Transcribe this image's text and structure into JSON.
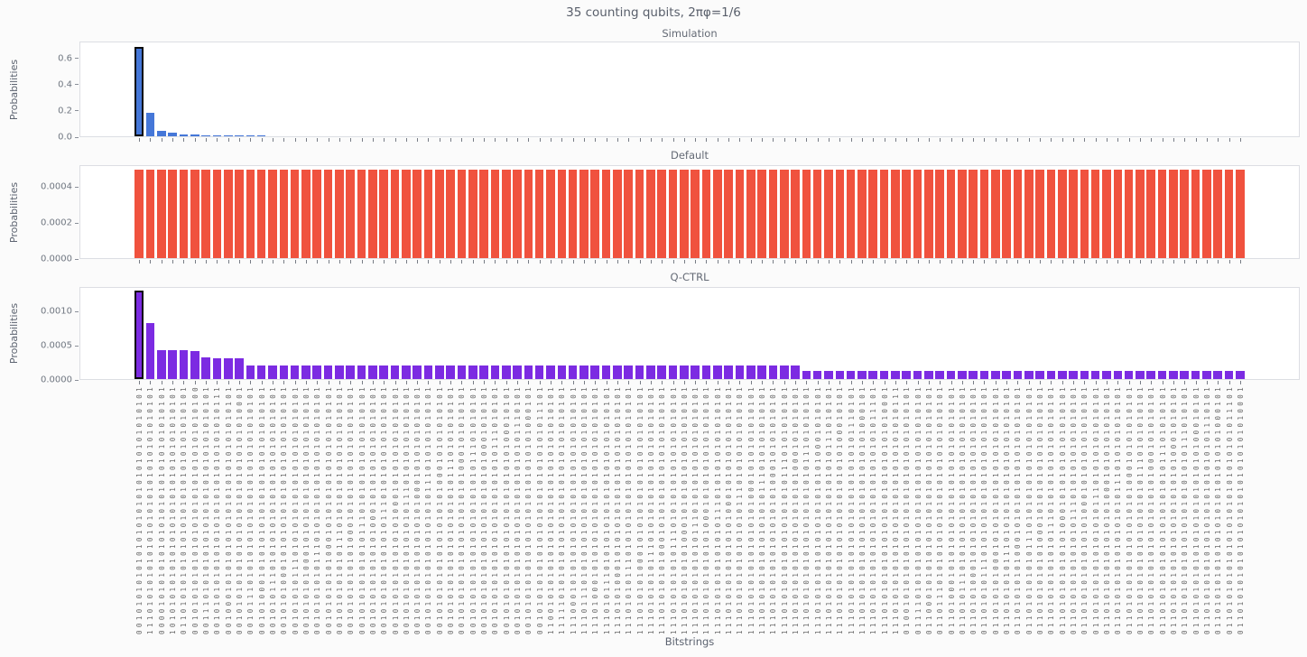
{
  "figure": {
    "suptitle": "35 counting qubits, 2πφ=1/6",
    "xlabel": "Bitstrings",
    "ylabel": "Probabilities"
  },
  "chart_data": [
    {
      "type": "bar",
      "title": "Simulation",
      "color": "#4577d8",
      "highlight_index": 0,
      "highlight_edge": "#0a0a0a",
      "yticks": [
        "0.0",
        "0.2",
        "0.4",
        "0.6"
      ],
      "ytick_values": [
        0.0,
        0.2,
        0.4,
        0.6
      ],
      "ylim": [
        0,
        0.73
      ],
      "values": [
        0.685,
        0.176,
        0.042,
        0.028,
        0.016,
        0.014,
        0.009,
        0.008,
        0.008,
        0.007,
        0.007,
        0.007,
        0,
        0,
        0,
        0,
        0,
        0,
        0,
        0,
        0,
        0,
        0,
        0,
        0,
        0,
        0,
        0,
        0,
        0,
        0,
        0,
        0,
        0,
        0,
        0,
        0,
        0,
        0,
        0,
        0,
        0,
        0,
        0,
        0,
        0,
        0,
        0,
        0,
        0,
        0,
        0,
        0,
        0,
        0,
        0,
        0,
        0,
        0,
        0,
        0,
        0,
        0,
        0,
        0,
        0,
        0,
        0,
        0,
        0,
        0,
        0,
        0,
        0,
        0,
        0,
        0,
        0,
        0,
        0,
        0,
        0,
        0,
        0,
        0,
        0,
        0,
        0,
        0,
        0,
        0,
        0,
        0,
        0,
        0,
        0,
        0,
        0,
        0,
        0
      ]
    },
    {
      "type": "bar",
      "title": "Default",
      "color": "#f0523e",
      "highlight_index": -1,
      "highlight_edge": "#0a0a0a",
      "yticks": [
        "0.0000",
        "0.0002",
        "0.0004"
      ],
      "ytick_values": [
        0.0,
        0.0002,
        0.0004
      ],
      "ylim": [
        0,
        0.00052
      ],
      "values": [
        0.00049,
        0.00049,
        0.00049,
        0.00049,
        0.00049,
        0.00049,
        0.00049,
        0.00049,
        0.00049,
        0.00049,
        0.00049,
        0.00049,
        0.00049,
        0.00049,
        0.00049,
        0.00049,
        0.00049,
        0.00049,
        0.00049,
        0.00049,
        0.00049,
        0.00049,
        0.00049,
        0.00049,
        0.00049,
        0.00049,
        0.00049,
        0.00049,
        0.00049,
        0.00049,
        0.00049,
        0.00049,
        0.00049,
        0.00049,
        0.00049,
        0.00049,
        0.00049,
        0.00049,
        0.00049,
        0.00049,
        0.00049,
        0.00049,
        0.00049,
        0.00049,
        0.00049,
        0.00049,
        0.00049,
        0.00049,
        0.00049,
        0.00049,
        0.00049,
        0.00049,
        0.00049,
        0.00049,
        0.00049,
        0.00049,
        0.00049,
        0.00049,
        0.00049,
        0.00049,
        0.00049,
        0.00049,
        0.00049,
        0.00049,
        0.00049,
        0.00049,
        0.00049,
        0.00049,
        0.00049,
        0.00049,
        0.00049,
        0.00049,
        0.00049,
        0.00049,
        0.00049,
        0.00049,
        0.00049,
        0.00049,
        0.00049,
        0.00049,
        0.00049,
        0.00049,
        0.00049,
        0.00049,
        0.00049,
        0.00049,
        0.00049,
        0.00049,
        0.00049,
        0.00049,
        0.00049,
        0.00049,
        0.00049,
        0.00049,
        0.00049,
        0.00049,
        0.00049,
        0.00049,
        0.00049,
        0.00049
      ]
    },
    {
      "type": "bar",
      "title": "Q-CTRL",
      "color": "#7c2be2",
      "highlight_index": 0,
      "highlight_edge": "#0a0a0a",
      "yticks": [
        "0.0000",
        "0.0005",
        "0.0010"
      ],
      "ytick_values": [
        0.0,
        0.0005,
        0.001
      ],
      "ylim": [
        0,
        0.00136
      ],
      "values": [
        0.0013,
        0.00082,
        0.00042,
        0.00042,
        0.00042,
        0.00041,
        0.00032,
        0.00031,
        0.00031,
        0.00031,
        0.0002,
        0.0002,
        0.0002,
        0.0002,
        0.0002,
        0.0002,
        0.0002,
        0.0002,
        0.0002,
        0.0002,
        0.0002,
        0.0002,
        0.0002,
        0.0002,
        0.0002,
        0.0002,
        0.0002,
        0.0002,
        0.0002,
        0.0002,
        0.0002,
        0.0002,
        0.0002,
        0.0002,
        0.0002,
        0.0002,
        0.0002,
        0.0002,
        0.0002,
        0.0002,
        0.0002,
        0.0002,
        0.0002,
        0.0002,
        0.0002,
        0.0002,
        0.0002,
        0.0002,
        0.0002,
        0.0002,
        0.0002,
        0.0002,
        0.0002,
        0.0002,
        0.0002,
        0.0002,
        0.0002,
        0.0002,
        0.0002,
        0.0002,
        0.00012,
        0.00012,
        0.00012,
        0.00012,
        0.00012,
        0.00012,
        0.00012,
        0.00012,
        0.00012,
        0.00012,
        0.00012,
        0.00012,
        0.00012,
        0.00012,
        0.00012,
        0.00012,
        0.00012,
        0.00012,
        0.00012,
        0.00012,
        0.00012,
        0.00012,
        0.00012,
        0.00012,
        0.00012,
        0.00012,
        0.00012,
        0.00012,
        0.00012,
        0.00012,
        0.00012,
        0.00012,
        0.00012,
        0.00012,
        0.00012,
        0.00012,
        0.00012,
        0.00012,
        0.00012,
        0.00012
      ]
    }
  ],
  "categories": [
    "00101010101010101010101010101010101",
    "11101010101010101010101010101010101",
    "00001010101010101010101010101010101",
    "10101010101010101010101010101010101",
    "01101010101010101010101010101010101",
    "00101010101010101010101010101010100",
    "00111010101010101010101010101010101",
    "00101010101010101010101010101010111",
    "00100010101010101010101010101010101",
    "00101010101010101010101010101010001",
    "00101110101010101010101010101010101",
    "00101000101010101010101010101010101",
    "00101011101010101010101010101010101",
    "00101010001010101010101010101010101",
    "00101010111010101010101010101010101",
    "00101010100010101010101010101010101",
    "00101010101110101010101010101010101",
    "00101010101000101010101010101010101",
    "00101010101011101010101010101010101",
    "00101010101010001010101010101010101",
    "00101010101010111010101010101010101",
    "00101010101010100010101010101010101",
    "00101010101010101110101010101010101",
    "00101010101010101000101010101010101",
    "00101010101010101011101010101010101",
    "00101010101010101010001010101010101",
    "00101010101010101010111010101010101",
    "00101010101010101010100010101010101",
    "00101010101010101010101110101010101",
    "00101010101010101010101000101010101",
    "00101010101010101010101011101010101",
    "00101010101010101010101010001010101",
    "00101010101010101010101010111010101",
    "00101010101010101010101010100010101",
    "00101010101010101010101010101110101",
    "00101010101010101010101010101000101",
    "00101010101010101010101010101011101",
    "11001010101010101010101010101010101",
    "11111010101010101010101010101010101",
    "11100010101010101010101010101010101",
    "11101110101010101010101010101010101",
    "11101000101010101010101010101010101",
    "11101011101010101010101010101010101",
    "11101010001010101010101010101010101",
    "11101010111010101010101010101010101",
    "11101010100010101010101010101010101",
    "11101010101110101010101010101010101",
    "11101010101000101010101010101010101",
    "11101010101011101010101010101010101",
    "11101010101010001010101010101010101",
    "11101010101010111010101010101010101",
    "11101010101010100010101010101010101",
    "11101010101010101110101010101010101",
    "11101010101010101000101010101010101",
    "11101010101010101011101010101010101",
    "11101010101010101010001010101010101",
    "11101010101010101010111010101010101",
    "11101010101010101010100010101010101",
    "11101010101010101010101110101010101",
    "11101010101010101010101000101010101",
    "11101010101010101010101011101010101",
    "11101010101010101010101010001010101",
    "11101010101010101010101010111010101",
    "11101010101010101010101010100010101",
    "11101010101010101010101010101110101",
    "11101010101010101010101010101000101",
    "11101010101010101010101010101011101",
    "11101010101010101010101010101010001",
    "11101010101010101010101010101010111",
    "01001010101010101010101010101010101",
    "01111010101010101010101010101010101",
    "01100010101010101010101010101010101",
    "01101110101010101010101010101010101",
    "01101000101010101010101010101010101",
    "01101011101010101010101010101010101",
    "01101010001010101010101010101010101",
    "01101010111010101010101010101010101",
    "01101010100010101010101010101010101",
    "01101010101110101010101010101010101",
    "01101010101000101010101010101010101",
    "01101010101011101010101010101010101",
    "01101010101010001010101010101010101",
    "01101010101010111010101010101010101",
    "01101010101010100010101010101010101",
    "01101010101010101110101010101010101",
    "01101010101010101000101010101010101",
    "01101010101010101011101010101010101",
    "01101010101010101010001010101010101",
    "01101010101010101010111010101010101",
    "01101010101010101010100010101010101",
    "01101010101010101010101110101010101",
    "01101010101010101010101000101010101",
    "01101010101010101010101011101010101",
    "01101010101010101010101010001010101",
    "01101010101010101010101010111010101",
    "01101010101010101010101010100010101",
    "01101010101010101010101010101110101",
    "01101010101010101010101010101000101",
    "01101010101010101010101010101011101",
    "01101010101010101010101010101010001"
  ]
}
